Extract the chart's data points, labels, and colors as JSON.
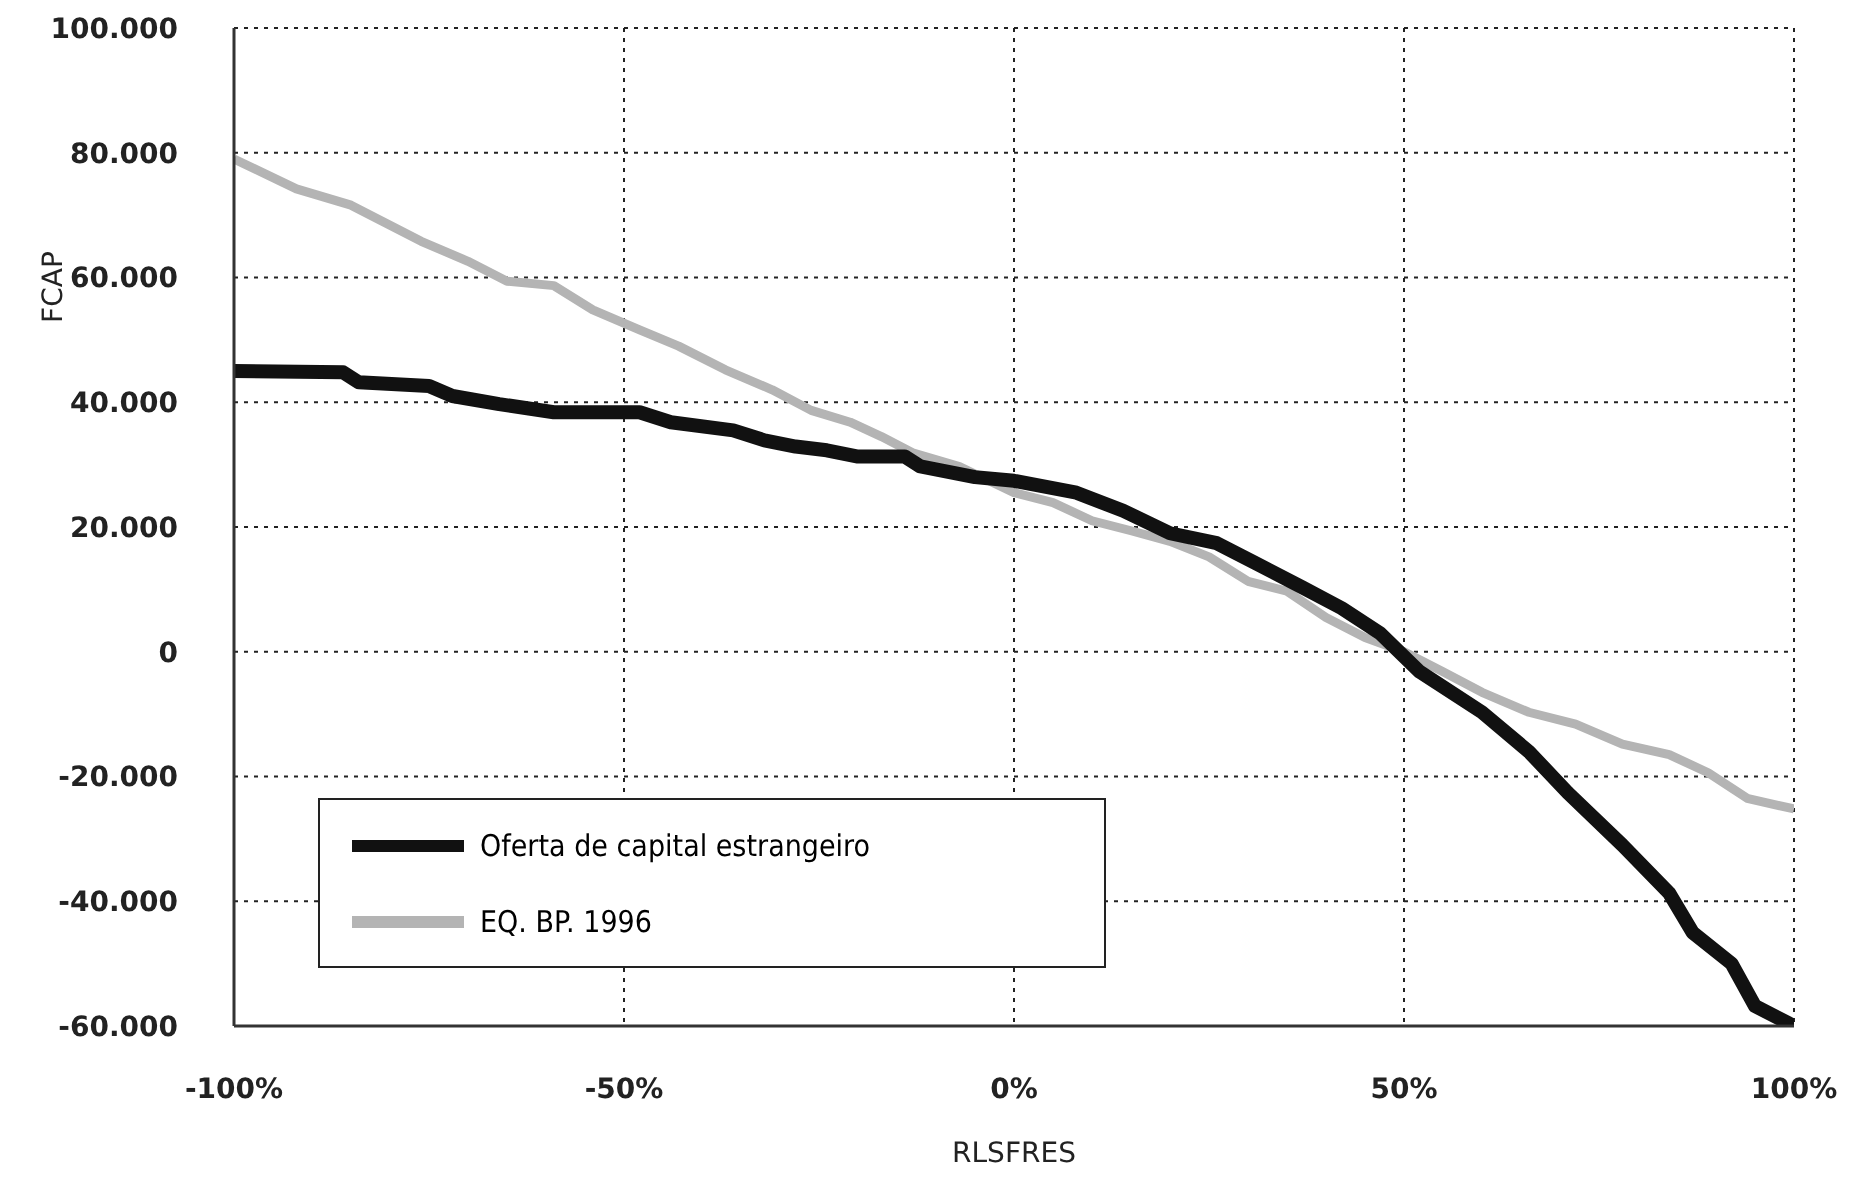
{
  "chart_data": {
    "type": "line",
    "xlabel": "RLSFRES",
    "ylabel": "FCAP",
    "xlim": [
      -100,
      100
    ],
    "xticks": [
      {
        "value": -100,
        "label": "-100%"
      },
      {
        "value": -50,
        "label": "-50%"
      },
      {
        "value": 0,
        "label": "0%"
      },
      {
        "value": 50,
        "label": "50%"
      },
      {
        "value": 100,
        "label": "100%"
      }
    ],
    "ylim": [
      -60000,
      100000
    ],
    "yticks": [
      {
        "value": -60000,
        "label": "-60.000"
      },
      {
        "value": -40000,
        "label": "-40.000"
      },
      {
        "value": -20000,
        "label": "-20.000"
      },
      0,
      {
        "value": 20000,
        "label": "20.000"
      },
      {
        "value": 40000,
        "label": "40.000"
      },
      {
        "value": 60000,
        "label": "60.000"
      },
      {
        "value": 80000,
        "label": "80.000"
      },
      {
        "value": 100000,
        "label": "100.000"
      }
    ],
    "grid": true,
    "legend": "bottom left",
    "marker": "none",
    "line_style": "solid",
    "series": [
      {
        "name": "Oferta de capital estrangeiro",
        "color": "#111111",
        "x": [
          -100,
          -86,
          -84,
          -75,
          -72,
          -66,
          -59,
          -48,
          -44,
          -36,
          -32,
          -28,
          -24,
          -20,
          -14,
          -12,
          -5,
          0,
          8,
          14,
          20,
          26,
          31,
          37,
          42,
          47,
          52,
          60,
          66,
          71,
          78,
          84,
          87,
          92,
          95,
          100
        ],
        "values": [
          45000,
          44800,
          43200,
          42600,
          41000,
          39700,
          38400,
          38400,
          36800,
          35500,
          33900,
          32900,
          32300,
          31300,
          31300,
          29700,
          28000,
          27400,
          25500,
          22600,
          19000,
          17400,
          14200,
          10300,
          7000,
          2900,
          -3200,
          -9700,
          -16000,
          -22600,
          -31000,
          -38700,
          -45000,
          -50000,
          -56800,
          -60000
        ]
      },
      {
        "name": "EQ. BP. 1996",
        "color": "#b4b4b4",
        "x": [
          -100,
          -92,
          -85,
          -81,
          -76,
          -70,
          -65,
          -59,
          -54,
          -48,
          -43,
          -37,
          -31,
          -26,
          -21,
          -17,
          -13,
          -7,
          0,
          5,
          10,
          15,
          20,
          25,
          30,
          35,
          40,
          45,
          50,
          55,
          60,
          66,
          72,
          78,
          84,
          89,
          94,
          100
        ],
        "values": [
          79000,
          74200,
          71600,
          69000,
          65800,
          62600,
          59400,
          58700,
          54800,
          51600,
          49000,
          45200,
          42000,
          38700,
          36800,
          34500,
          31900,
          29700,
          25500,
          23900,
          21000,
          19400,
          17700,
          15200,
          11300,
          9700,
          5500,
          2300,
          0,
          -3200,
          -6500,
          -9700,
          -11600,
          -14800,
          -16500,
          -19400,
          -23500,
          -25200
        ]
      }
    ]
  }
}
